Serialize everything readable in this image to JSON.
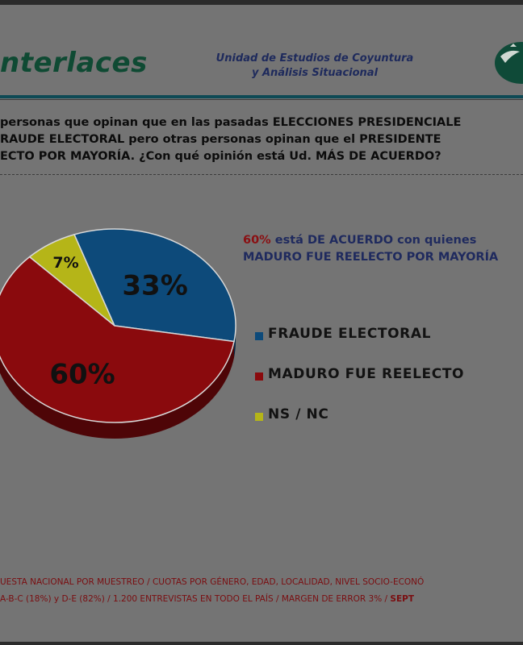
{
  "header": {
    "brand": "nterlaces",
    "unit_line1": "Unidad de Estudios de Coyuntura",
    "unit_line2": "y Análisis Situacional"
  },
  "question": {
    "line1": "personas que opinan que en las pasadas ELECCIONES PRESIDENCIALE",
    "line2": "RAUDE ELECTORAL pero otras personas opinan que el PRESIDENTE",
    "line3": "ECTO POR MAYORÍA. ¿Con qué opinión está Ud. MÁS DE ACUERDO?"
  },
  "summary": {
    "pct": "60%",
    "line1_rest": " está DE ACUERDO con quienes",
    "line2": "MADURO FUE REELECTO POR MAYORÍA"
  },
  "footer": {
    "line1": "UESTA NACIONAL POR MUESTREO / CUOTAS POR GÉNERO, EDAD, LOCALIDAD, NIVEL SOCIO-ECONÓ",
    "line2": "A-B-C (18%)  y  D-E (82%) / 1.200  ENTREVISTAS EN TODO EL PAÍS /  MARGEN DE ERROR 3% / ",
    "date": "SEPT"
  },
  "colors": {
    "fraude": "#0d4a7a",
    "maduro": "#8a0a0d",
    "nsnc": "#b5b518"
  },
  "chart_data": {
    "type": "pie",
    "categories": [
      "FRAUDE ELECTORAL",
      "MADURO FUE REELECTO",
      "NS / NC"
    ],
    "values": [
      33,
      60,
      7
    ],
    "data_labels": [
      "33%",
      "60%",
      "7%"
    ],
    "legend": "right"
  }
}
